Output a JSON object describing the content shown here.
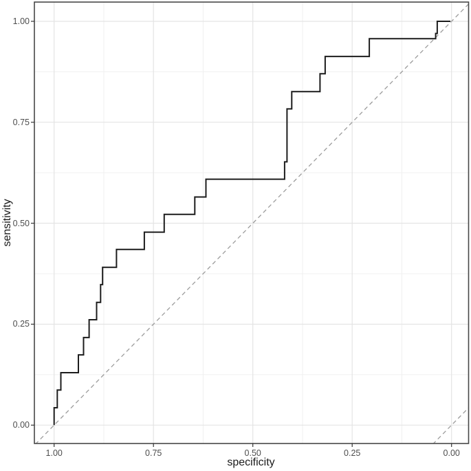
{
  "figure": {
    "background_color": "#ffffff",
    "panel_background": "#ffffff",
    "panel_border_color": "#474747",
    "grid_major_color": "#e4e4e4",
    "grid_minor_color": "#f0f0f0",
    "tick_mark_color": "#333333",
    "tick_label_color": "#4d4d4d",
    "axis_title_color": "#1a1a1a"
  },
  "chart_data": {
    "type": "line",
    "subtype": "roc-step-curve",
    "title": "",
    "xlabel": "specificity",
    "ylabel": "sensitivity",
    "x_axis_reversed": true,
    "xlim": [
      1.0,
      0.0
    ],
    "ylim": [
      0.0,
      1.0
    ],
    "x_tick_values": [
      1.0,
      0.75,
      0.5,
      0.25,
      0.0
    ],
    "x_tick_labels": [
      "1.00",
      "0.75",
      "0.50",
      "0.25",
      "0.00"
    ],
    "y_tick_values": [
      0.0,
      0.25,
      0.5,
      0.75,
      1.0
    ],
    "y_tick_labels": [
      "0.00",
      "0.25",
      "0.50",
      "0.75",
      "1.00"
    ],
    "minor_tick_values": [
      0.125,
      0.375,
      0.625,
      0.875
    ],
    "grid": {
      "major": true,
      "minor": true
    },
    "legend": "none",
    "series": [
      {
        "name": "roc-curve",
        "color": "#1c1c1c",
        "line_style": "solid",
        "line_width": 2,
        "points_spec_sens": [
          [
            1.0,
            0.0
          ],
          [
            1.0,
            0.043
          ],
          [
            0.992,
            0.043
          ],
          [
            0.992,
            0.087
          ],
          [
            0.983,
            0.087
          ],
          [
            0.983,
            0.13
          ],
          [
            0.939,
            0.13
          ],
          [
            0.939,
            0.174
          ],
          [
            0.926,
            0.174
          ],
          [
            0.926,
            0.217
          ],
          [
            0.912,
            0.217
          ],
          [
            0.912,
            0.261
          ],
          [
            0.893,
            0.261
          ],
          [
            0.893,
            0.304
          ],
          [
            0.883,
            0.304
          ],
          [
            0.883,
            0.348
          ],
          [
            0.878,
            0.348
          ],
          [
            0.878,
            0.391
          ],
          [
            0.843,
            0.391
          ],
          [
            0.843,
            0.435
          ],
          [
            0.773,
            0.435
          ],
          [
            0.773,
            0.478
          ],
          [
            0.723,
            0.478
          ],
          [
            0.723,
            0.522
          ],
          [
            0.646,
            0.522
          ],
          [
            0.646,
            0.565
          ],
          [
            0.618,
            0.565
          ],
          [
            0.618,
            0.609
          ],
          [
            0.42,
            0.609
          ],
          [
            0.42,
            0.652
          ],
          [
            0.414,
            0.652
          ],
          [
            0.414,
            0.783
          ],
          [
            0.402,
            0.783
          ],
          [
            0.402,
            0.826
          ],
          [
            0.331,
            0.826
          ],
          [
            0.331,
            0.87
          ],
          [
            0.318,
            0.87
          ],
          [
            0.318,
            0.913
          ],
          [
            0.207,
            0.913
          ],
          [
            0.207,
            0.957
          ],
          [
            0.04,
            0.957
          ],
          [
            0.04,
            0.97
          ],
          [
            0.036,
            0.97
          ],
          [
            0.036,
            1.0
          ],
          [
            0.003,
            1.0
          ]
        ]
      }
    ],
    "reference_lines": [
      {
        "name": "chance-line",
        "color": "#9c9c9c",
        "line_style": "dashed",
        "points_spec_sens": [
          [
            1.06,
            -0.06
          ],
          [
            -0.06,
            1.06
          ]
        ]
      },
      {
        "name": "corner-diagonal",
        "color": "#9c9c9c",
        "line_style": "dashed",
        "points_spec_sens": [
          [
            0.06,
            -0.06
          ],
          [
            -0.06,
            0.06
          ]
        ]
      }
    ]
  }
}
